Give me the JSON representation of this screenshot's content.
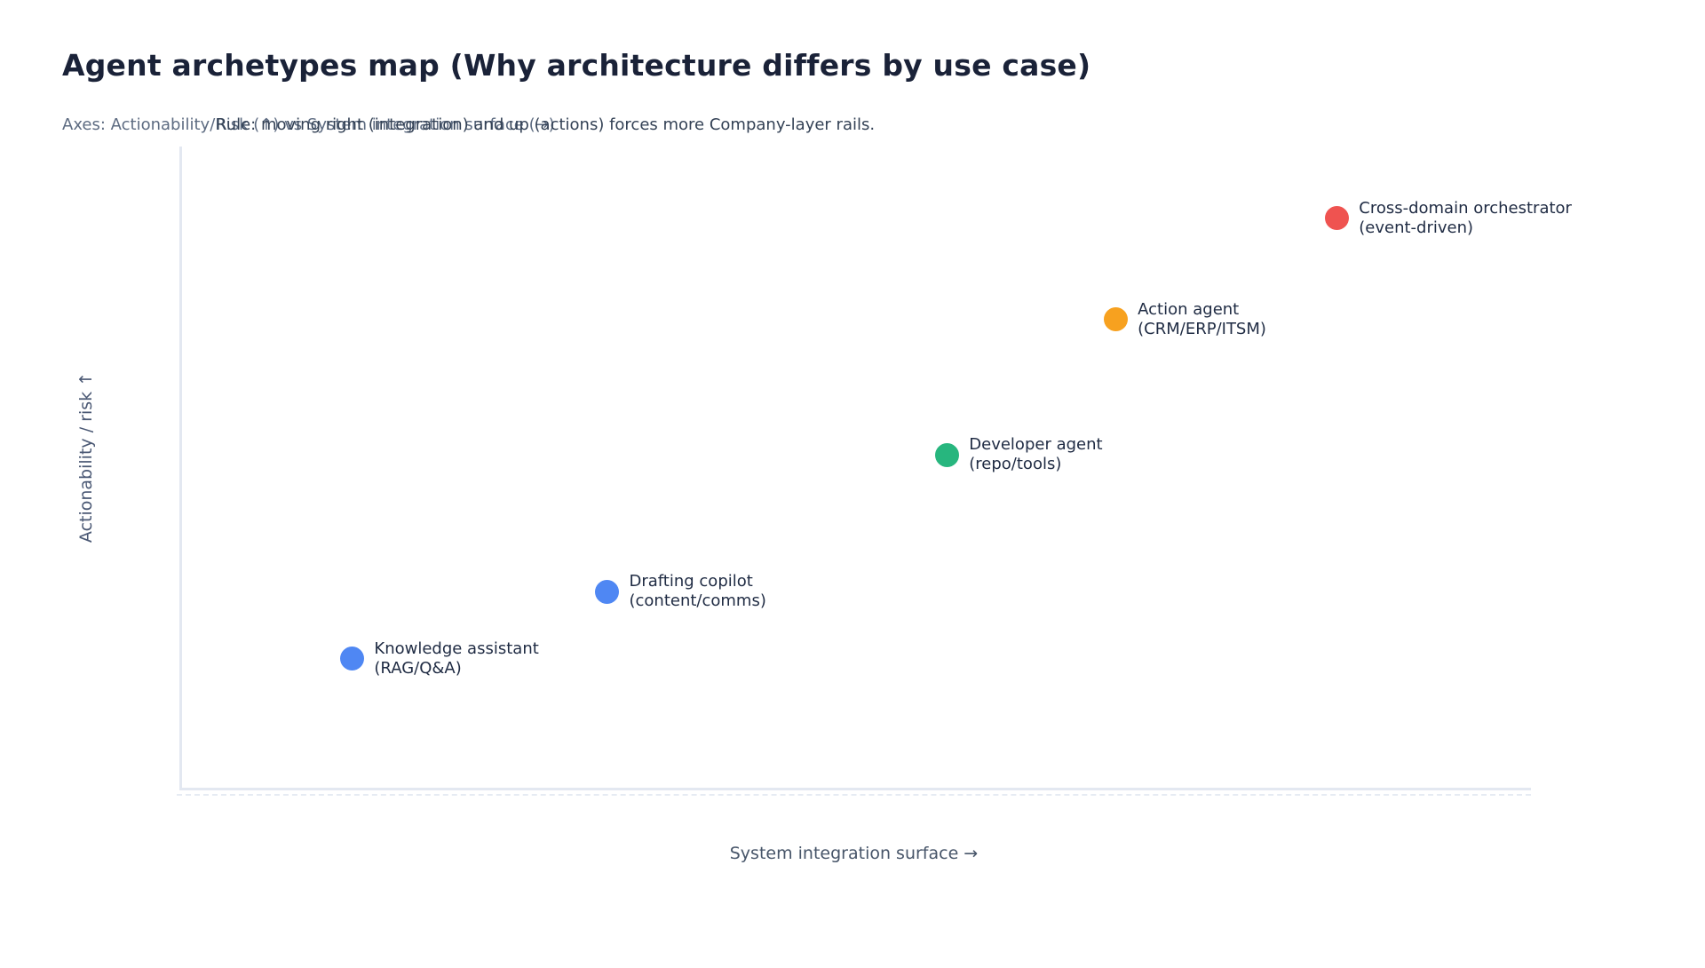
{
  "page": {
    "title": "Agent archetypes map (Why architecture differs by use case)",
    "subtitle_axes": "Axes: Actionability/Risk (↑) vs System integration surface (→)",
    "subtitle_rule": "Rule: moving right (integration) and up (actions) forces more Company-layer rails."
  },
  "colors": {
    "axis_line": "#e3e8f1",
    "blue": "#4f87f3",
    "green": "#27b67e",
    "orange": "#f7a11f",
    "red": "#ef5350"
  },
  "chart_data": {
    "type": "scatter",
    "title": "Agent archetypes map (Why architecture differs by use case)",
    "xlabel": "System integration surface →",
    "ylabel": "Actionability / risk ↑",
    "xlim": [
      0,
      100
    ],
    "ylim": [
      0,
      100
    ],
    "grid": false,
    "tick_labels": "none",
    "legend": "none (labels placed beside each point)",
    "points": [
      {
        "id": "knowledge-assistant",
        "label": [
          "Knowledge assistant",
          "(RAG/Q&A)"
        ],
        "x": 12.6,
        "y": 20.1,
        "color": "#4f87f3"
      },
      {
        "id": "drafting-copilot",
        "label": [
          "Drafting copilot",
          "(content/comms)"
        ],
        "x": 31.5,
        "y": 30.6,
        "color": "#4f87f3"
      },
      {
        "id": "developer-agent",
        "label": [
          "Developer agent",
          "(repo/tools)"
        ],
        "x": 56.7,
        "y": 51.9,
        "color": "#27b67e"
      },
      {
        "id": "action-agent",
        "label": [
          "Action agent",
          "(CRM/ERP/ITSM)"
        ],
        "x": 69.2,
        "y": 73.0,
        "color": "#f7a11f"
      },
      {
        "id": "cross-domain-orchestrator",
        "label": [
          "Cross-domain orchestrator",
          "(event-driven)"
        ],
        "x": 85.6,
        "y": 88.8,
        "color": "#ef5350"
      }
    ]
  }
}
